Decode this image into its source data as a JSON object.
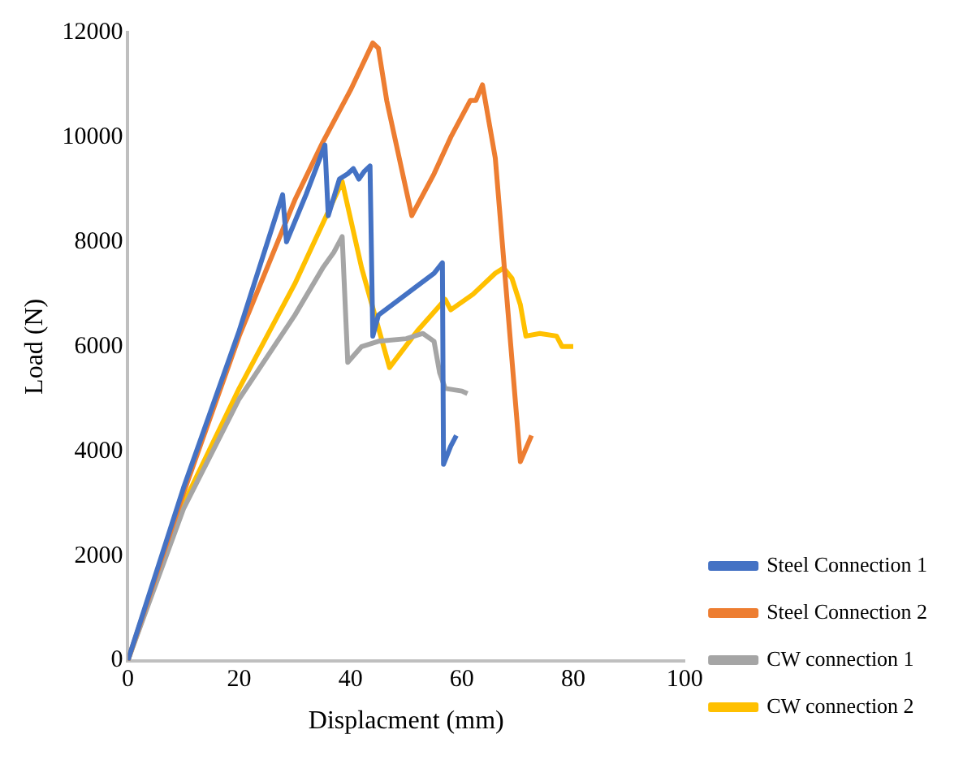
{
  "chart_data": {
    "type": "line",
    "xlabel": "Displacment (mm)",
    "ylabel": "Load (N)",
    "xlim": [
      0,
      100
    ],
    "xticks": [
      0,
      20,
      40,
      60,
      80,
      100
    ],
    "ylim": [
      0,
      12000
    ],
    "yticks": [
      0,
      2000,
      4000,
      6000,
      8000,
      10000,
      12000
    ],
    "grid": false,
    "legend": "bottom right",
    "marker": "none",
    "line_style": "solid",
    "series": [
      {
        "name": "Steel Connection 1",
        "color": "#4472c4",
        "x": [
          0,
          10,
          20,
          27.8,
          28.5,
          32,
          35.4,
          36,
          38,
          39.5,
          40.5,
          41.5,
          42.5,
          43.5,
          44,
          45,
          50,
          55,
          56.5,
          56.7,
          58,
          59
        ],
        "values": [
          0,
          3300,
          6300,
          8900,
          8000,
          8900,
          9850,
          8500,
          9200,
          9300,
          9400,
          9200,
          9350,
          9450,
          6200,
          6600,
          7000,
          7400,
          7600,
          3750,
          4100,
          4300
        ]
      },
      {
        "name": "Steel Connection 2",
        "color": "#ed7d31",
        "x": [
          0,
          10,
          20,
          30,
          35,
          40,
          44,
          45,
          46.5,
          51,
          55,
          58,
          61.5,
          62.5,
          63.7,
          66,
          70.5,
          72.5
        ],
        "values": [
          0,
          3200,
          6200,
          8800,
          9900,
          10900,
          11800,
          11700,
          10700,
          8500,
          9300,
          10000,
          10700,
          10700,
          11000,
          9600,
          3800,
          4300
        ]
      },
      {
        "name": "CW connection 1",
        "color": "#a5a5a5",
        "x": [
          0,
          10,
          20,
          30,
          35,
          37,
          38.5,
          39.5,
          42,
          45,
          50,
          53,
          55,
          56,
          57,
          60,
          61
        ],
        "values": [
          0,
          2900,
          5000,
          6600,
          7500,
          7800,
          8100,
          5700,
          6000,
          6100,
          6150,
          6250,
          6100,
          5500,
          5200,
          5150,
          5100
        ]
      },
      {
        "name": "CW connection 2",
        "color": "#ffc000",
        "x": [
          0,
          10,
          20,
          30,
          38.5,
          42,
          47,
          52,
          57,
          58,
          62,
          66,
          67.5,
          69,
          70.5,
          71.5,
          74,
          77,
          78,
          80
        ],
        "values": [
          0,
          3000,
          5200,
          7200,
          9150,
          7500,
          5600,
          6300,
          6900,
          6700,
          7000,
          7400,
          7500,
          7300,
          6800,
          6200,
          6250,
          6200,
          6000,
          6000
        ]
      }
    ]
  }
}
